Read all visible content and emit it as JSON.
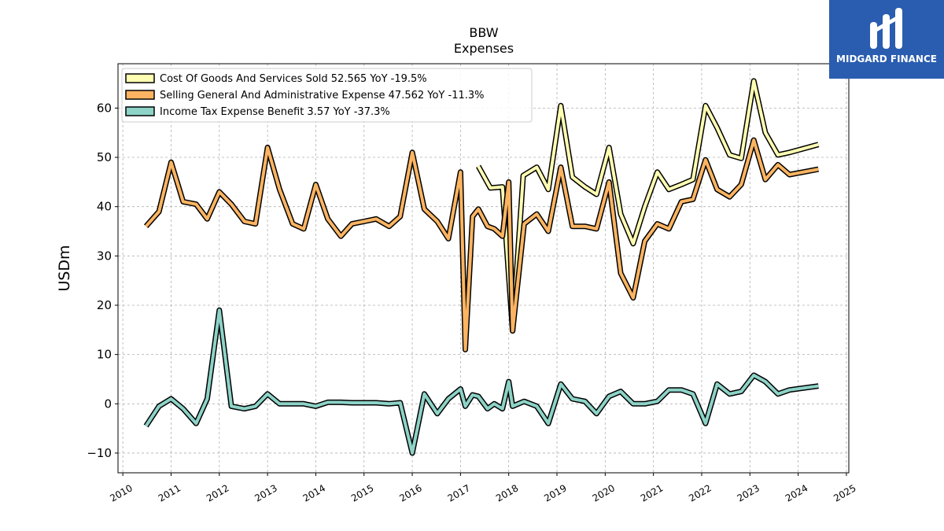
{
  "brand": {
    "name": "MIDGARD FINANCE",
    "bg_color": "#2a5db0"
  },
  "chart_data": {
    "type": "line",
    "title": "BBW",
    "subtitle": "Expenses",
    "xlabel": "",
    "ylabel": "USDm",
    "xlim": [
      2009.9,
      2025.05
    ],
    "ylim": [
      -14,
      69
    ],
    "grid": true,
    "legend_placement": "top-left",
    "x_ticks": [
      2010,
      2011,
      2012,
      2013,
      2014,
      2015,
      2016,
      2017,
      2018,
      2019,
      2020,
      2021,
      2022,
      2023,
      2024,
      2025
    ],
    "y_ticks": [
      -10,
      0,
      10,
      20,
      30,
      40,
      50,
      60
    ],
    "series": [
      {
        "name": "Cost Of Goods And Services Sold",
        "legend_label": "Cost Of Goods And Services Sold  52.565 YoY -19.5%",
        "color": "#ffffb3",
        "points": [
          [
            2017.37,
            48.2
          ],
          [
            2017.62,
            43.8
          ],
          [
            2017.87,
            44.0
          ],
          [
            2018.08,
            14.8
          ],
          [
            2018.3,
            46.3
          ],
          [
            2018.58,
            48.0
          ],
          [
            2018.82,
            43.5
          ],
          [
            2019.08,
            60.5
          ],
          [
            2019.32,
            46.0
          ],
          [
            2019.58,
            44.0
          ],
          [
            2019.82,
            42.5
          ],
          [
            2020.08,
            52.0
          ],
          [
            2020.32,
            38.5
          ],
          [
            2020.58,
            32.5
          ],
          [
            2020.82,
            40.0
          ],
          [
            2021.08,
            47.0
          ],
          [
            2021.32,
            43.5
          ],
          [
            2021.58,
            44.5
          ],
          [
            2021.82,
            45.5
          ],
          [
            2022.08,
            60.5
          ],
          [
            2022.32,
            56.0
          ],
          [
            2022.58,
            50.5
          ],
          [
            2022.82,
            49.8
          ],
          [
            2023.08,
            65.5
          ],
          [
            2023.32,
            55.0
          ],
          [
            2023.58,
            50.5
          ],
          [
            2023.82,
            51.0
          ],
          [
            2024.42,
            52.6
          ]
        ]
      },
      {
        "name": "Selling General And Administrative Expense",
        "legend_label": "Selling General And Administrative Expense  47.562 YoY -11.3%",
        "color": "#fdb462",
        "points": [
          [
            2010.48,
            36.0
          ],
          [
            2010.75,
            39.0
          ],
          [
            2011.0,
            49.0
          ],
          [
            2011.25,
            41.0
          ],
          [
            2011.52,
            40.5
          ],
          [
            2011.75,
            37.5
          ],
          [
            2012.0,
            43.0
          ],
          [
            2012.25,
            40.5
          ],
          [
            2012.52,
            37.0
          ],
          [
            2012.75,
            36.5
          ],
          [
            2013.0,
            52.0
          ],
          [
            2013.25,
            43.5
          ],
          [
            2013.52,
            36.5
          ],
          [
            2013.75,
            35.5
          ],
          [
            2014.0,
            44.5
          ],
          [
            2014.25,
            37.5
          ],
          [
            2014.52,
            34.0
          ],
          [
            2014.75,
            36.5
          ],
          [
            2015.0,
            37.0
          ],
          [
            2015.25,
            37.5
          ],
          [
            2015.52,
            36.0
          ],
          [
            2015.75,
            38.0
          ],
          [
            2016.0,
            51.0
          ],
          [
            2016.25,
            39.5
          ],
          [
            2016.52,
            37.0
          ],
          [
            2016.75,
            33.5
          ],
          [
            2017.0,
            47.0
          ],
          [
            2017.1,
            11.0
          ],
          [
            2017.25,
            38.0
          ],
          [
            2017.37,
            39.5
          ],
          [
            2017.56,
            36.0
          ],
          [
            2017.7,
            35.5
          ],
          [
            2017.87,
            34.0
          ],
          [
            2018.0,
            45.0
          ],
          [
            2018.08,
            14.8
          ],
          [
            2018.32,
            36.5
          ],
          [
            2018.58,
            38.5
          ],
          [
            2018.82,
            35.0
          ],
          [
            2019.08,
            48.0
          ],
          [
            2019.32,
            36.0
          ],
          [
            2019.58,
            36.0
          ],
          [
            2019.82,
            35.5
          ],
          [
            2020.08,
            45.0
          ],
          [
            2020.32,
            26.5
          ],
          [
            2020.58,
            21.5
          ],
          [
            2020.82,
            33.0
          ],
          [
            2021.08,
            36.5
          ],
          [
            2021.32,
            35.5
          ],
          [
            2021.58,
            41.0
          ],
          [
            2021.82,
            41.5
          ],
          [
            2022.08,
            49.5
          ],
          [
            2022.32,
            43.5
          ],
          [
            2022.58,
            42.0
          ],
          [
            2022.82,
            44.5
          ],
          [
            2023.08,
            53.5
          ],
          [
            2023.32,
            45.5
          ],
          [
            2023.58,
            48.5
          ],
          [
            2023.82,
            46.5
          ],
          [
            2024.42,
            47.6
          ]
        ]
      },
      {
        "name": "Income Tax Expense Benefit",
        "legend_label": "Income Tax Expense Benefit  3.57 YoY -37.3%",
        "color": "#8dd3c7",
        "points": [
          [
            2010.48,
            -4.5
          ],
          [
            2010.75,
            -0.5
          ],
          [
            2011.0,
            1.0
          ],
          [
            2011.25,
            -1.0
          ],
          [
            2011.52,
            -4.0
          ],
          [
            2011.75,
            1.0
          ],
          [
            2012.0,
            19.0
          ],
          [
            2012.25,
            -0.5
          ],
          [
            2012.52,
            -1.0
          ],
          [
            2012.75,
            -0.5
          ],
          [
            2013.0,
            2.0
          ],
          [
            2013.25,
            0.0
          ],
          [
            2013.52,
            0.0
          ],
          [
            2013.75,
            0.0
          ],
          [
            2014.0,
            -0.5
          ],
          [
            2014.25,
            0.3
          ],
          [
            2014.52,
            0.3
          ],
          [
            2014.75,
            0.2
          ],
          [
            2015.0,
            0.2
          ],
          [
            2015.25,
            0.2
          ],
          [
            2015.52,
            0.0
          ],
          [
            2015.75,
            0.2
          ],
          [
            2016.0,
            -10.0
          ],
          [
            2016.25,
            2.0
          ],
          [
            2016.52,
            -2.0
          ],
          [
            2016.75,
            1.0
          ],
          [
            2017.0,
            3.0
          ],
          [
            2017.1,
            -0.5
          ],
          [
            2017.25,
            1.8
          ],
          [
            2017.37,
            1.5
          ],
          [
            2017.56,
            -1.0
          ],
          [
            2017.7,
            0.0
          ],
          [
            2017.87,
            -1.0
          ],
          [
            2018.0,
            4.5
          ],
          [
            2018.08,
            -0.5
          ],
          [
            2018.32,
            0.5
          ],
          [
            2018.58,
            -0.5
          ],
          [
            2018.82,
            -4.0
          ],
          [
            2019.08,
            4.0
          ],
          [
            2019.32,
            1.0
          ],
          [
            2019.58,
            0.5
          ],
          [
            2019.82,
            -2.0
          ],
          [
            2020.08,
            1.5
          ],
          [
            2020.32,
            2.5
          ],
          [
            2020.58,
            0.0
          ],
          [
            2020.82,
            0.0
          ],
          [
            2021.08,
            0.5
          ],
          [
            2021.32,
            2.8
          ],
          [
            2021.58,
            2.8
          ],
          [
            2021.82,
            2.0
          ],
          [
            2022.08,
            -4.0
          ],
          [
            2022.32,
            4.0
          ],
          [
            2022.58,
            2.0
          ],
          [
            2022.82,
            2.5
          ],
          [
            2023.08,
            5.8
          ],
          [
            2023.32,
            4.5
          ],
          [
            2023.58,
            2.0
          ],
          [
            2023.82,
            2.8
          ],
          [
            2024.42,
            3.6
          ]
        ]
      }
    ]
  }
}
